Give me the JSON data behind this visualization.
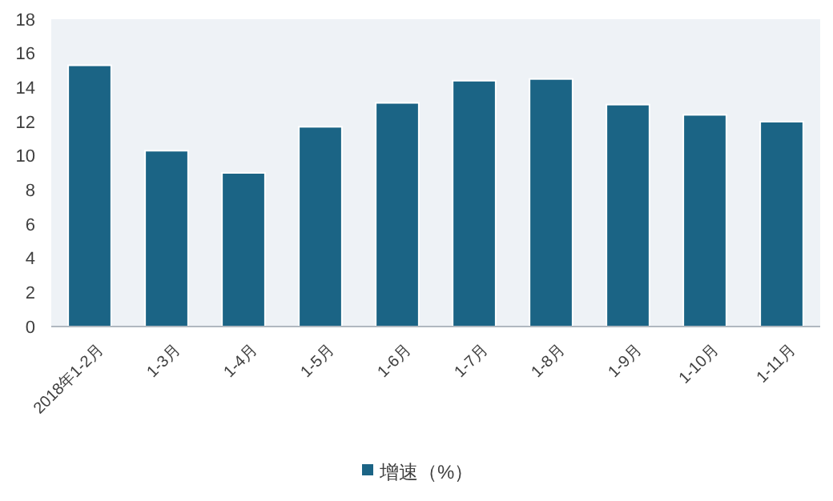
{
  "chart_data": {
    "type": "bar",
    "categories": [
      "2018年1-2月",
      "1-3月",
      "1-4月",
      "1-5月",
      "1-6月",
      "1-7月",
      "1-8月",
      "1-9月",
      "1-10月",
      "1-11月"
    ],
    "series": [
      {
        "name": "增速（%）",
        "color": "#1b6485",
        "values": [
          15.3,
          10.3,
          9.0,
          11.7,
          13.1,
          14.4,
          14.5,
          13.0,
          12.4,
          12.0
        ]
      }
    ],
    "ylim": [
      0,
      18
    ],
    "yticks": [
      0,
      2,
      4,
      6,
      8,
      10,
      12,
      14,
      16,
      18
    ],
    "grid": false,
    "legend": "bottom"
  }
}
